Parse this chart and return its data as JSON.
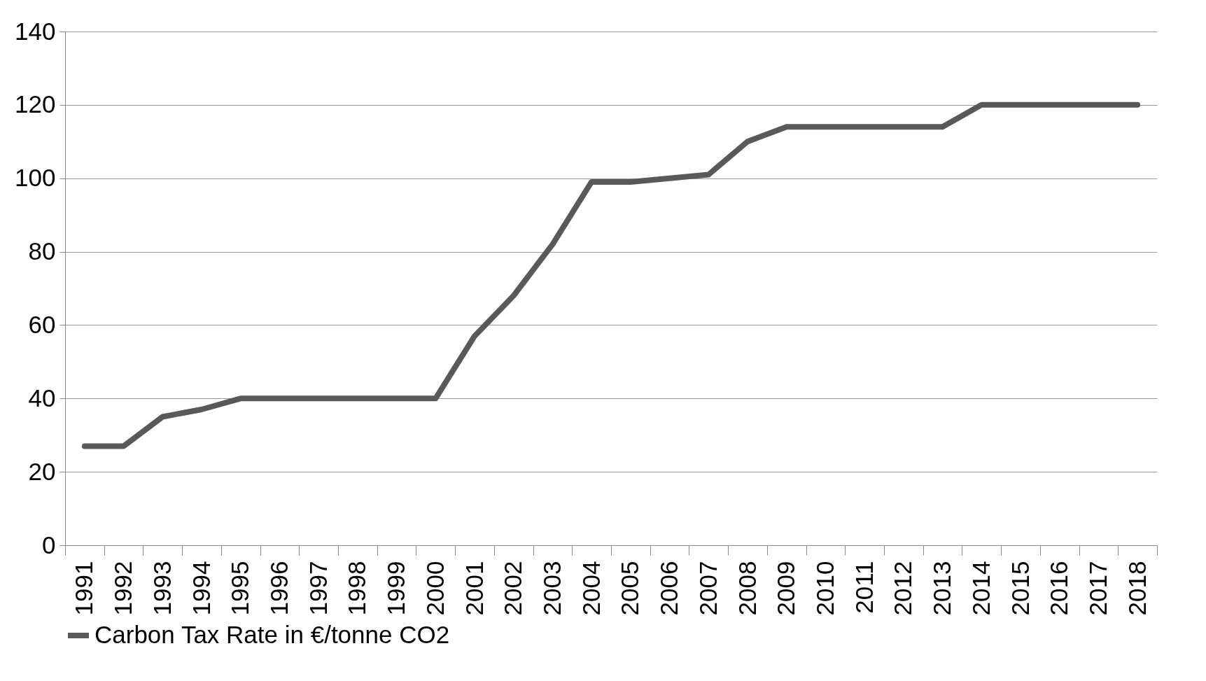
{
  "chart_data": {
    "type": "line",
    "categories": [
      "1991",
      "1992",
      "1993",
      "1994",
      "1995",
      "1996",
      "1997",
      "1998",
      "1999",
      "2000",
      "2001",
      "2002",
      "2003",
      "2004",
      "2005",
      "2006",
      "2007",
      "2008",
      "2009",
      "2010",
      "2011",
      "2012",
      "2013",
      "2014",
      "2015",
      "2016",
      "2017",
      "2018"
    ],
    "series": [
      {
        "name": "Carbon Tax Rate in €/tonne CO2",
        "color": "#595959",
        "values": [
          27,
          27,
          35,
          37,
          40,
          40,
          40,
          40,
          40,
          40,
          57,
          68,
          82,
          99,
          99,
          100,
          101,
          110,
          114,
          114,
          114,
          114,
          114,
          120,
          120,
          120,
          120,
          120
        ]
      }
    ],
    "ylim": [
      0,
      140
    ],
    "yticks": [
      0,
      20,
      40,
      60,
      80,
      100,
      120,
      140
    ],
    "grid": "y",
    "legend": "bottom",
    "marker": "none",
    "line_style": "solid"
  }
}
